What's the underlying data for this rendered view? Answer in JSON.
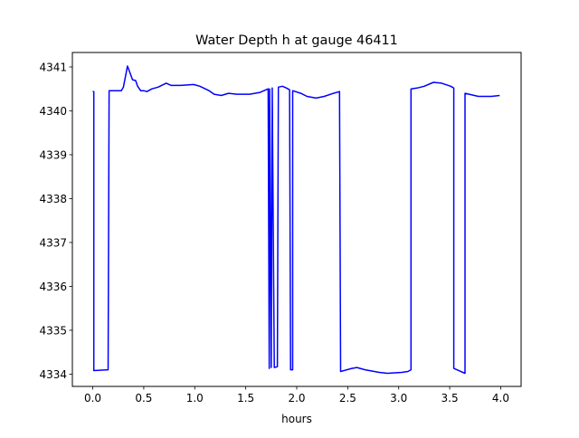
{
  "chart_data": {
    "type": "line",
    "title": "Water Depth h at gauge 46411",
    "xlabel": "hours",
    "ylabel": "",
    "xlim": [
      -0.2,
      4.2
    ],
    "ylim": [
      4333.72,
      4341.33
    ],
    "xticks": [
      0.0,
      0.5,
      1.0,
      1.5,
      2.0,
      2.5,
      3.0,
      3.5,
      4.0
    ],
    "xtick_labels": [
      "0.0",
      "0.5",
      "1.0",
      "1.5",
      "2.0",
      "2.5",
      "3.0",
      "3.5",
      "4.0"
    ],
    "yticks": [
      4334,
      4335,
      4336,
      4337,
      4338,
      4339,
      4340,
      4341
    ],
    "ytick_labels": [
      "4334",
      "4335",
      "4336",
      "4337",
      "4338",
      "4339",
      "4340",
      "4341"
    ],
    "grid": false,
    "series": [
      {
        "name": "h",
        "color": "#0000ff",
        "x": [
          0.0,
          0.01,
          0.01,
          0.15,
          0.16,
          0.28,
          0.3,
          0.34,
          0.36,
          0.39,
          0.42,
          0.44,
          0.47,
          0.5,
          0.53,
          0.58,
          0.64,
          0.72,
          0.77,
          0.86,
          0.99,
          1.05,
          1.14,
          1.19,
          1.26,
          1.33,
          1.41,
          1.54,
          1.64,
          1.72,
          1.73,
          1.735,
          1.75,
          1.76,
          1.78,
          1.81,
          1.82,
          1.86,
          1.9,
          1.93,
          1.94,
          1.96,
          1.96,
          2.04,
          2.1,
          2.19,
          2.27,
          2.36,
          2.42,
          2.43,
          2.54,
          2.59,
          2.67,
          2.81,
          2.89,
          3.03,
          3.09,
          3.12,
          3.12,
          3.18,
          3.25,
          3.34,
          3.42,
          3.51,
          3.54,
          3.54,
          3.65,
          3.65,
          3.69,
          3.78,
          3.91,
          3.99
        ],
        "y": [
          4340.44,
          4340.44,
          4334.08,
          4334.1,
          4340.46,
          4340.46,
          4340.54,
          4341.02,
          4340.9,
          4340.71,
          4340.69,
          4340.56,
          4340.46,
          4340.46,
          4340.44,
          4340.5,
          4340.54,
          4340.63,
          4340.58,
          4340.58,
          4340.6,
          4340.56,
          4340.46,
          4340.38,
          4340.35,
          4340.4,
          4340.38,
          4340.38,
          4340.42,
          4340.5,
          4334.13,
          4340.5,
          4334.15,
          4340.52,
          4334.15,
          4334.17,
          4340.54,
          4340.56,
          4340.52,
          4340.48,
          4334.1,
          4334.1,
          4340.46,
          4340.4,
          4340.33,
          4340.29,
          4340.33,
          4340.4,
          4340.44,
          4334.06,
          4334.13,
          4334.15,
          4334.1,
          4334.04,
          4334.02,
          4334.04,
          4334.06,
          4334.1,
          4340.5,
          4340.52,
          4340.56,
          4340.65,
          4340.63,
          4340.56,
          4340.52,
          4334.13,
          4334.02,
          4340.4,
          4340.38,
          4340.33,
          4340.33,
          4340.35
        ]
      }
    ]
  }
}
